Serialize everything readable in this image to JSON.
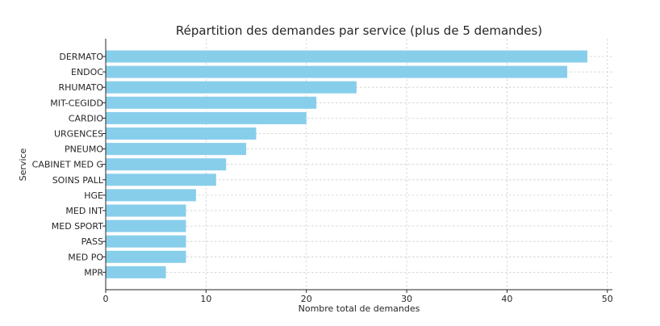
{
  "chart_data": {
    "type": "bar",
    "orientation": "horizontal",
    "title": "Répartition des demandes par service (plus de 5 demandes)",
    "xlabel": "Nombre total de demandes",
    "ylabel": "Service",
    "xlim": [
      0,
      50.5
    ],
    "xticks": [
      "0",
      "10",
      "20",
      "30",
      "40",
      "50"
    ],
    "grid": true,
    "bar_color": "#87CEEB",
    "categories": [
      "DERMATO",
      "ENDOC",
      "RHUMATO",
      "MIT-CEGIDD",
      "CARDIO",
      "URGENCES",
      "PNEUMO",
      "CABINET MED G",
      "SOINS PALL",
      "HGE",
      "MED INT",
      "MED SPORT",
      "PASS",
      "MED PO",
      "MPR"
    ],
    "values": [
      48,
      46,
      25,
      21,
      20,
      15,
      14,
      12,
      11,
      9,
      8,
      8,
      8,
      8,
      6
    ]
  }
}
